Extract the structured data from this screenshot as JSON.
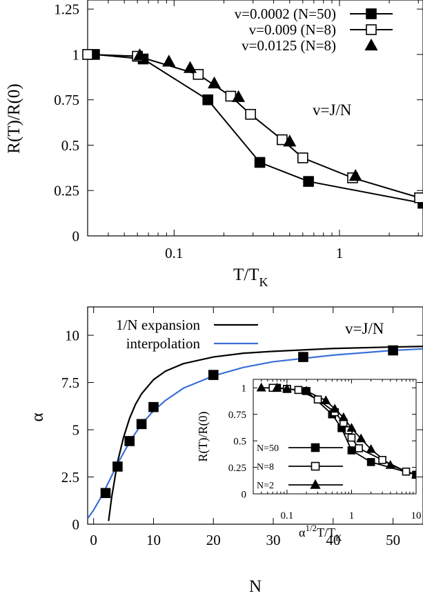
{
  "chart_data": [
    {
      "type": "line",
      "xscale": "log",
      "xlim": [
        0.03,
        3.2
      ],
      "ylim": [
        0,
        1.3
      ],
      "xlabel": "T/T",
      "xlabel_sub": "K",
      "ylabel": "R(T)/R(0)",
      "xticks": [
        {
          "v": 0.1,
          "t": "0.1"
        },
        {
          "v": 1,
          "t": "1"
        }
      ],
      "yticks": [
        {
          "v": 0,
          "t": "0"
        },
        {
          "v": 0.25,
          "t": "0.25"
        },
        {
          "v": 0.5,
          "t": "0.5"
        },
        {
          "v": 0.75,
          "t": "0.75"
        },
        {
          "v": 1,
          "t": "1"
        },
        {
          "v": 1.25,
          "t": "1.25"
        }
      ],
      "annotation": "v=J/N",
      "legend_position": "top-right",
      "series": [
        {
          "name": "v=0.0002 (N=50)",
          "marker": "filled-square",
          "line": true,
          "x": [
            0.033,
            0.065,
            0.16,
            0.33,
            0.65,
            3.2
          ],
          "y": [
            1.0,
            0.975,
            0.75,
            0.405,
            0.3,
            0.18
          ]
        },
        {
          "name": "v=0.009 (N=8)",
          "marker": "open-square",
          "line": true,
          "x": [
            0.03,
            0.06,
            0.14,
            0.22,
            0.29,
            0.45,
            0.6,
            1.2,
            3.05
          ],
          "y": [
            1.0,
            0.99,
            0.89,
            0.77,
            0.67,
            0.53,
            0.43,
            0.32,
            0.21
          ]
        },
        {
          "name": "v=0.0125 (N=8)",
          "marker": "filled-triangle",
          "line": false,
          "x": [
            0.062,
            0.093,
            0.125,
            0.175,
            0.245,
            0.5,
            1.25
          ],
          "y": [
            0.995,
            0.96,
            0.925,
            0.84,
            0.765,
            0.52,
            0.33
          ]
        }
      ]
    },
    {
      "type": "line",
      "xlim": [
        -1,
        55
      ],
      "ylim": [
        0,
        11.5
      ],
      "xlabel": "N",
      "ylabel": "α",
      "xticks": [
        {
          "v": 0,
          "t": "0"
        },
        {
          "v": 10,
          "t": "10"
        },
        {
          "v": 20,
          "t": "20"
        },
        {
          "v": 30,
          "t": "30"
        },
        {
          "v": 40,
          "t": "40"
        },
        {
          "v": 50,
          "t": "50"
        }
      ],
      "yticks": [
        {
          "v": 0,
          "t": "0"
        },
        {
          "v": 2.5,
          "t": "2.5"
        },
        {
          "v": 5,
          "t": "5"
        },
        {
          "v": 7.5,
          "t": "7.5"
        },
        {
          "v": 10,
          "t": "10"
        }
      ],
      "annotation": "v=J/N",
      "legend_position": "top-left",
      "series": [
        {
          "name": "1/N expansion",
          "color": "#000000",
          "style": "line",
          "x": [
            2.5,
            3,
            4,
            5,
            6,
            7,
            8,
            10,
            12,
            15,
            20,
            25,
            30,
            40,
            50,
            55
          ],
          "y": [
            0.17,
            1.4,
            3.3,
            4.6,
            5.6,
            6.35,
            6.9,
            7.65,
            8.1,
            8.5,
            8.85,
            9.05,
            9.15,
            9.3,
            9.38,
            9.41
          ]
        },
        {
          "name": "interpolation",
          "color": "#3a6fd8",
          "style": "line",
          "x": [
            -1,
            0,
            1,
            2,
            3,
            4,
            6,
            8,
            10,
            12,
            15,
            20,
            25,
            30,
            40,
            50,
            55
          ],
          "y": [
            0.3,
            0.75,
            1.3,
            1.9,
            2.55,
            3.2,
            4.35,
            5.3,
            6.0,
            6.55,
            7.2,
            7.85,
            8.3,
            8.6,
            8.95,
            9.2,
            9.28
          ]
        },
        {
          "name": "data",
          "marker": "filled-square",
          "style": "points",
          "x": [
            2,
            4,
            6,
            8,
            10,
            20,
            35,
            50
          ],
          "y": [
            1.65,
            3.05,
            4.4,
            5.3,
            6.2,
            7.9,
            8.85,
            9.2
          ]
        }
      ]
    },
    {
      "type": "line",
      "role": "inset",
      "xscale": "log",
      "xlim": [
        0.03,
        10
      ],
      "ylim": [
        0,
        1.08
      ],
      "xlabel": "α",
      "xlabel_sup": "1/2",
      "xlabel_rest": "T/T",
      "xlabel_sub": "K",
      "ylabel": "R(T)/R(0)",
      "xticks": [
        {
          "v": 0.1,
          "t": "0.1"
        },
        {
          "v": 1,
          "t": "1"
        },
        {
          "v": 10,
          "t": "10"
        }
      ],
      "yticks": [
        {
          "v": 0,
          "t": "0"
        },
        {
          "v": 0.25,
          "t": "0.25"
        },
        {
          "v": 0.5,
          "t": "0.5"
        },
        {
          "v": 0.75,
          "t": "0.75"
        },
        {
          "v": 1,
          "t": "1"
        }
      ],
      "legend_position": "bottom-left",
      "series": [
        {
          "name": "N=50",
          "marker": "filled-square",
          "x": [
            0.07,
            0.1,
            0.2,
            0.5,
            0.7,
            1.0,
            2.0,
            10
          ],
          "y": [
            1.0,
            0.99,
            0.97,
            0.75,
            0.62,
            0.41,
            0.3,
            0.18
          ]
        },
        {
          "name": "N=8",
          "marker": "open-square",
          "x": [
            0.06,
            0.1,
            0.15,
            0.3,
            0.55,
            0.75,
            0.9,
            1.0,
            1.3,
            3.0,
            7.0
          ],
          "y": [
            1.0,
            0.99,
            0.98,
            0.89,
            0.77,
            0.67,
            0.6,
            0.53,
            0.43,
            0.32,
            0.21
          ]
        },
        {
          "name": "N=2",
          "marker": "filled-triangle",
          "x": [
            0.04,
            0.07,
            0.1,
            0.2,
            0.4,
            0.55,
            0.75,
            1.0,
            1.4,
            2.0,
            4.0,
            10
          ],
          "y": [
            1.0,
            1.0,
            0.99,
            0.97,
            0.88,
            0.8,
            0.72,
            0.62,
            0.52,
            0.42,
            0.27,
            0.18
          ]
        }
      ]
    }
  ]
}
